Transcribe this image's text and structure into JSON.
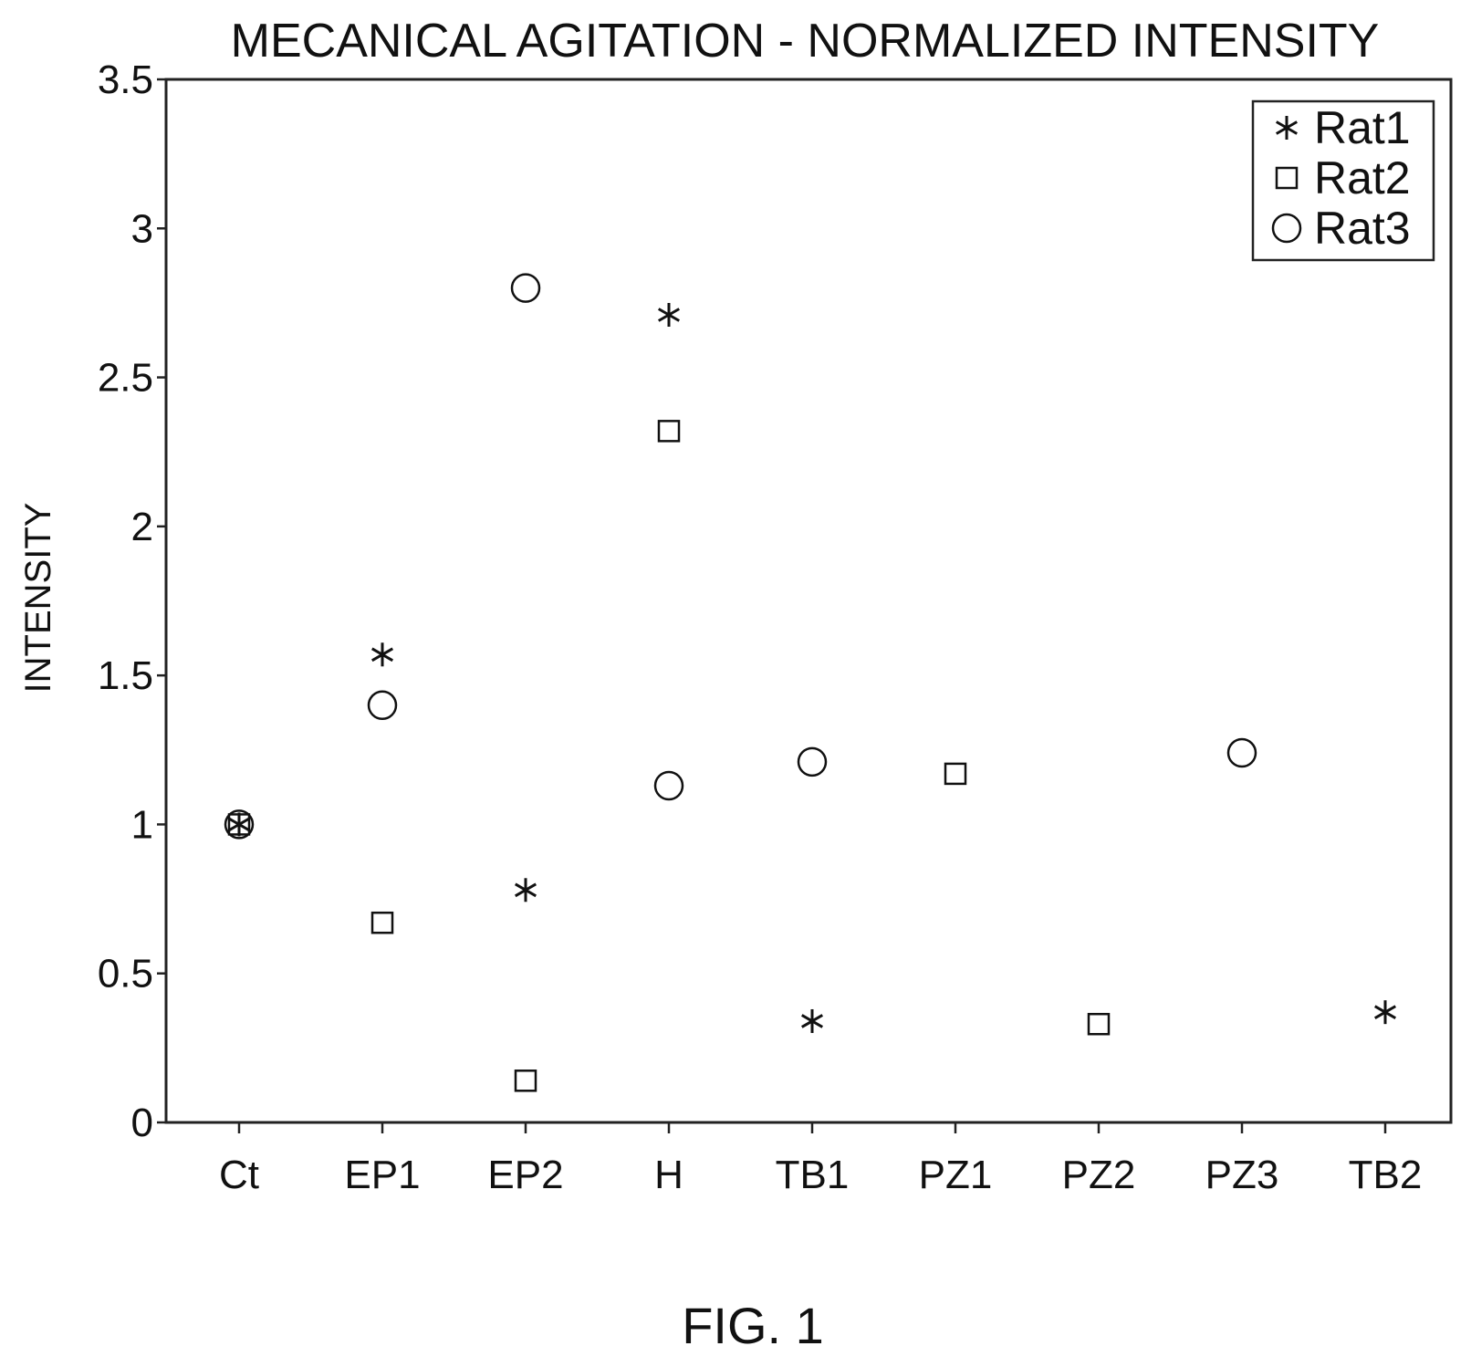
{
  "chart_data": {
    "type": "scatter",
    "title": "MECANICAL AGITATION - NORMALIZED INTENSITY",
    "xlabel": "",
    "ylabel": "INTENSITY",
    "categories": [
      "Ct",
      "EP1",
      "EP2",
      "H",
      "TB1",
      "PZ1",
      "PZ2",
      "PZ3",
      "TB2"
    ],
    "ylim": [
      0,
      3.5
    ],
    "yticks": [
      "0",
      "0.5",
      "1",
      "1.5",
      "2",
      "2.5",
      "3",
      "3.5"
    ],
    "grid": false,
    "legend_position": "top-right",
    "series": [
      {
        "name": "Rat1",
        "marker": "asterisk",
        "values": [
          1.0,
          1.57,
          0.78,
          2.71,
          0.34,
          null,
          null,
          null,
          0.37
        ]
      },
      {
        "name": "Rat2",
        "marker": "square",
        "values": [
          1.0,
          0.67,
          0.14,
          2.32,
          null,
          1.17,
          0.33,
          null,
          null
        ]
      },
      {
        "name": "Rat3",
        "marker": "circle",
        "values": [
          1.0,
          1.4,
          2.8,
          1.13,
          1.21,
          null,
          null,
          1.24,
          null
        ]
      }
    ]
  },
  "caption": "FIG. 1"
}
